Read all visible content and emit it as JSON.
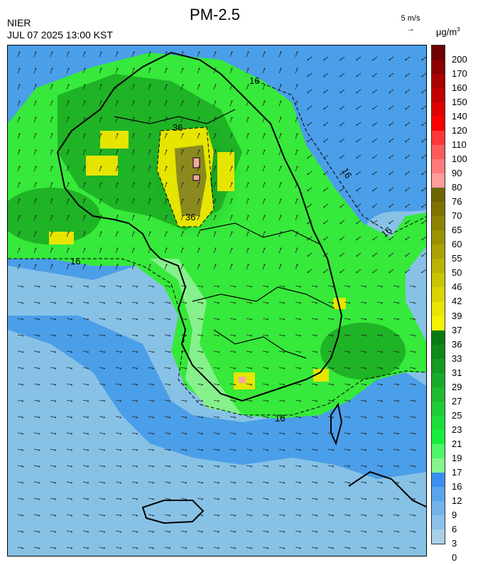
{
  "header": {
    "title": "PM-2.5",
    "agency": "NIER",
    "timestamp": "JUL 07 2025 13:00 KST",
    "wind_reference": "5 m/s",
    "units_base": "μg/m",
    "units_exp": "3"
  },
  "map": {
    "contour_labels": [
      "16",
      "16",
      "16",
      "16",
      "16",
      "36",
      "36"
    ],
    "colors": {
      "ocean_far": "#87c2e6",
      "ocean_near": "#4b9ee8",
      "land_low": "#36e93a",
      "land_mid": "#1fb326",
      "land_high": "#0e7d19",
      "land_pale": "#86f08d",
      "yellow": "#e5e500",
      "olive": "#8a8a1e",
      "pink": "#f4a5a5"
    }
  },
  "colorbar": {
    "ticks": [
      "200",
      "170",
      "160",
      "150",
      "140",
      "120",
      "110",
      "100",
      "90",
      "80",
      "76",
      "70",
      "65",
      "60",
      "55",
      "50",
      "46",
      "42",
      "39",
      "37",
      "36",
      "33",
      "31",
      "29",
      "27",
      "25",
      "23",
      "21",
      "19",
      "17",
      "16",
      "12",
      "9",
      "6",
      "3",
      "0"
    ],
    "segments": [
      {
        "color": "#6d0000"
      },
      {
        "color": "#8c0000"
      },
      {
        "color": "#aa0000"
      },
      {
        "color": "#c40000"
      },
      {
        "color": "#e00000"
      },
      {
        "color": "#ff0000"
      },
      {
        "color": "#ff3838"
      },
      {
        "color": "#ff5c5c"
      },
      {
        "color": "#ff7b7b"
      },
      {
        "color": "#ff9c9c"
      },
      {
        "color": "#6e6400"
      },
      {
        "color": "#7d7400"
      },
      {
        "color": "#8c8300"
      },
      {
        "color": "#9b9200"
      },
      {
        "color": "#aaa200"
      },
      {
        "color": "#bab300"
      },
      {
        "color": "#cac400"
      },
      {
        "color": "#d9d400"
      },
      {
        "color": "#e8e600"
      },
      {
        "color": "#f3f300"
      },
      {
        "color": "#087a12"
      },
      {
        "color": "#0f8a1a"
      },
      {
        "color": "#159a22"
      },
      {
        "color": "#1aab2a"
      },
      {
        "color": "#1fbb32"
      },
      {
        "color": "#20cc38"
      },
      {
        "color": "#1ddd3a"
      },
      {
        "color": "#18ee3d"
      },
      {
        "color": "#4ef66a"
      },
      {
        "color": "#86f58d"
      },
      {
        "color": "#3a8ff0"
      },
      {
        "color": "#5aa4ee"
      },
      {
        "color": "#73b2ea"
      },
      {
        "color": "#8bc1e8"
      },
      {
        "color": "#a8d0ea"
      }
    ]
  }
}
